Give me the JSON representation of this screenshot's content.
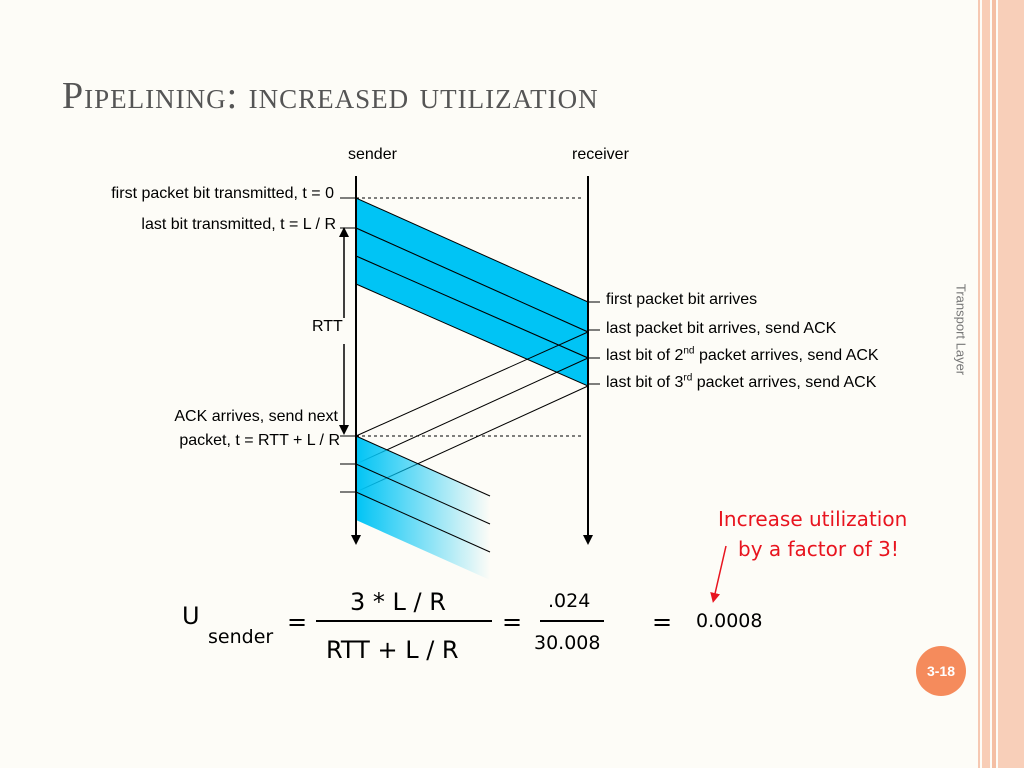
{
  "slide": {
    "title": "Pipelining: increased utilization",
    "side_label": "Transport Layer",
    "page_number": "3-18"
  },
  "diagram": {
    "sender_label": "sender",
    "receiver_label": "receiver",
    "left_labels": {
      "first_bit": "first packet bit transmitted, t = 0",
      "last_bit": "last bit transmitted, t = L / R",
      "rtt": "RTT",
      "ack_arrives_line1": "ACK arrives, send next",
      "ack_arrives_line2": "packet, t = RTT + L / R"
    },
    "right_labels": {
      "first_arrives": "first packet bit arrives",
      "last_arrives": "last packet bit arrives, send ACK",
      "second_prefix": "last bit of 2",
      "second_sup": "nd",
      "second_suffix": " packet arrives, send ACK",
      "third_prefix": "last bit of 3",
      "third_sup": "rd",
      "third_suffix": " packet arrives, send ACK"
    },
    "colors": {
      "packet_fill": "#00c4f5",
      "line": "#000000",
      "note": "#e8141f",
      "accent": "#f58b5c"
    }
  },
  "note": {
    "line1": "Increase utilization",
    "line2": "by a factor of 3!"
  },
  "equation": {
    "u": "U",
    "sub": "sender",
    "eq1": "=",
    "num1": "3 * L / R",
    "den1": "RTT + L / R",
    "eq2": "=",
    "num2": ".024",
    "den2": "30.008",
    "eq3": "=",
    "result": "0.0008"
  }
}
